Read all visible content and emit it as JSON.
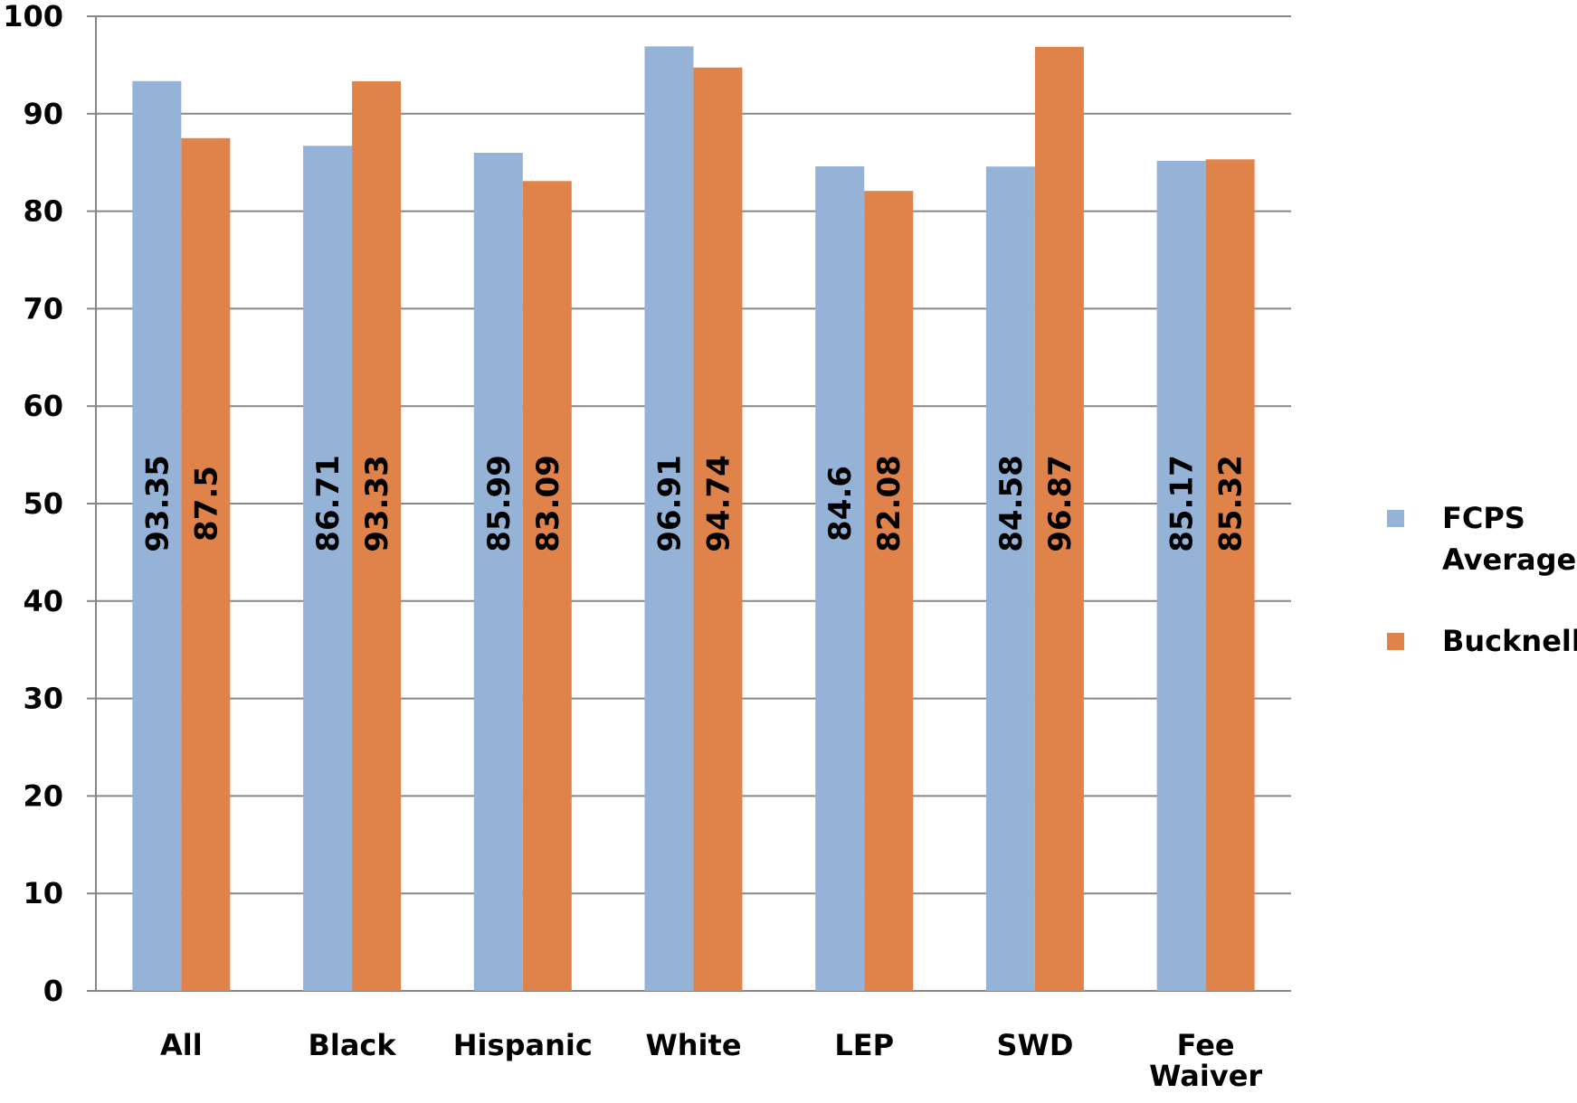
{
  "chart_data": {
    "type": "bar",
    "categories": [
      [
        "All"
      ],
      [
        "Black"
      ],
      [
        "Hispanic"
      ],
      [
        "White"
      ],
      [
        "LEP"
      ],
      [
        "SWD"
      ],
      [
        "Fee",
        "Waiver"
      ]
    ],
    "series": [
      {
        "name": "FCPS Average",
        "legend_lines": [
          "FCPS",
          "Average"
        ],
        "color": "#95B3D7",
        "values": [
          93.35,
          86.71,
          85.99,
          96.91,
          84.6,
          84.58,
          85.17
        ]
      },
      {
        "name": "Bucknell",
        "legend_lines": [
          "Bucknell"
        ],
        "color": "#E0834A",
        "values": [
          87.5,
          93.33,
          83.09,
          94.74,
          82.08,
          96.87,
          85.32
        ]
      }
    ],
    "ylim": [
      0,
      100
    ],
    "yticks": [
      0,
      10,
      20,
      30,
      40,
      50,
      60,
      70,
      80,
      90,
      100
    ],
    "grid": true,
    "legend_position": "right",
    "gridline_color": "#878787"
  }
}
